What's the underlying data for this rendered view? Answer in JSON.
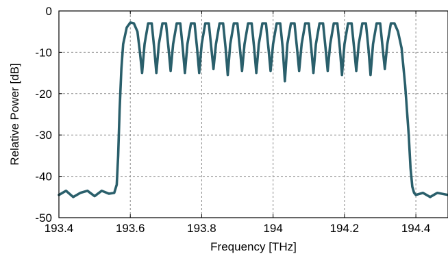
{
  "chart_data": {
    "type": "line",
    "title": "",
    "xlabel": "Frequency [THz]",
    "ylabel": "Relative Power [dB]",
    "xlim": [
      193.4,
      194.49
    ],
    "ylim": [
      -50,
      0
    ],
    "xticks": [
      193.4,
      193.6,
      193.8,
      194.0,
      194.2,
      194.4
    ],
    "xtick_labels": [
      "193.4",
      "193.6",
      "193.8",
      "194",
      "194.2",
      "194.4"
    ],
    "yticks": [
      0,
      -10,
      -20,
      -30,
      -40,
      -50
    ],
    "ytick_labels": [
      "0",
      "-10",
      "-20",
      "-30",
      "-40",
      "-50"
    ],
    "grid": true,
    "line_color": "#2a5f6b",
    "series": [
      {
        "x": [
          193.4,
          193.42,
          193.44,
          193.46,
          193.48,
          193.5,
          193.52,
          193.54,
          193.555,
          193.562,
          193.566,
          193.57,
          193.575,
          193.58,
          193.59,
          193.6,
          193.61,
          193.62,
          193.627,
          193.633,
          193.64,
          193.65,
          193.66,
          193.667,
          193.673,
          193.68,
          193.69,
          193.7,
          193.707,
          193.713,
          193.72,
          193.73,
          193.74,
          193.747,
          193.753,
          193.76,
          193.77,
          193.78,
          193.787,
          193.793,
          193.8,
          193.81,
          193.82,
          193.827,
          193.833,
          193.84,
          193.85,
          193.86,
          193.867,
          193.873,
          193.88,
          193.89,
          193.9,
          193.907,
          193.913,
          193.92,
          193.93,
          193.94,
          193.947,
          193.953,
          193.96,
          193.97,
          193.98,
          193.987,
          193.993,
          194.0,
          194.01,
          194.02,
          194.027,
          194.033,
          194.04,
          194.05,
          194.06,
          194.067,
          194.073,
          194.08,
          194.09,
          194.1,
          194.107,
          194.113,
          194.12,
          194.13,
          194.14,
          194.147,
          194.153,
          194.16,
          194.17,
          194.18,
          194.187,
          194.193,
          194.2,
          194.21,
          194.22,
          194.227,
          194.233,
          194.24,
          194.25,
          194.26,
          194.267,
          194.273,
          194.28,
          194.29,
          194.3,
          194.307,
          194.313,
          194.32,
          194.33,
          194.34,
          194.35,
          194.36,
          194.37,
          194.38,
          194.385,
          194.39,
          194.395,
          194.4,
          194.42,
          194.44,
          194.46,
          194.49
        ],
        "y": [
          -44.5,
          -43.5,
          -45.0,
          -44.0,
          -43.5,
          -44.8,
          -43.5,
          -44.2,
          -44.0,
          -42.0,
          -35.0,
          -24.0,
          -14.0,
          -8.0,
          -4.0,
          -2.8,
          -3.0,
          -5.0,
          -10.0,
          -15.0,
          -8.0,
          -3.0,
          -3.0,
          -9.0,
          -15.0,
          -8.0,
          -3.0,
          -3.0,
          -9.0,
          -14.5,
          -8.0,
          -3.0,
          -3.0,
          -9.0,
          -15.0,
          -8.0,
          -3.0,
          -3.0,
          -9.0,
          -15.0,
          -8.0,
          -3.0,
          -3.0,
          -9.0,
          -14.0,
          -8.0,
          -3.0,
          -3.0,
          -9.0,
          -15.5,
          -8.0,
          -3.0,
          -3.0,
          -9.0,
          -14.5,
          -8.0,
          -3.0,
          -3.0,
          -9.0,
          -15.0,
          -8.0,
          -3.0,
          -3.0,
          -9.0,
          -14.5,
          -8.0,
          -3.0,
          -3.0,
          -9.0,
          -17.0,
          -8.0,
          -3.0,
          -3.0,
          -9.0,
          -14.5,
          -8.0,
          -3.0,
          -3.0,
          -9.0,
          -15.0,
          -8.0,
          -3.0,
          -3.0,
          -9.0,
          -14.5,
          -8.0,
          -3.0,
          -3.0,
          -9.0,
          -15.5,
          -8.0,
          -3.0,
          -3.0,
          -9.0,
          -14.5,
          -8.0,
          -3.0,
          -3.0,
          -9.0,
          -15.5,
          -8.0,
          -3.0,
          -3.0,
          -9.0,
          -14.0,
          -8.0,
          -3.0,
          -3.0,
          -5.0,
          -9.0,
          -18.0,
          -30.0,
          -38.0,
          -42.5,
          -44.0,
          -44.5,
          -44.0,
          -45.0,
          -44.0,
          -44.5
        ]
      }
    ]
  }
}
